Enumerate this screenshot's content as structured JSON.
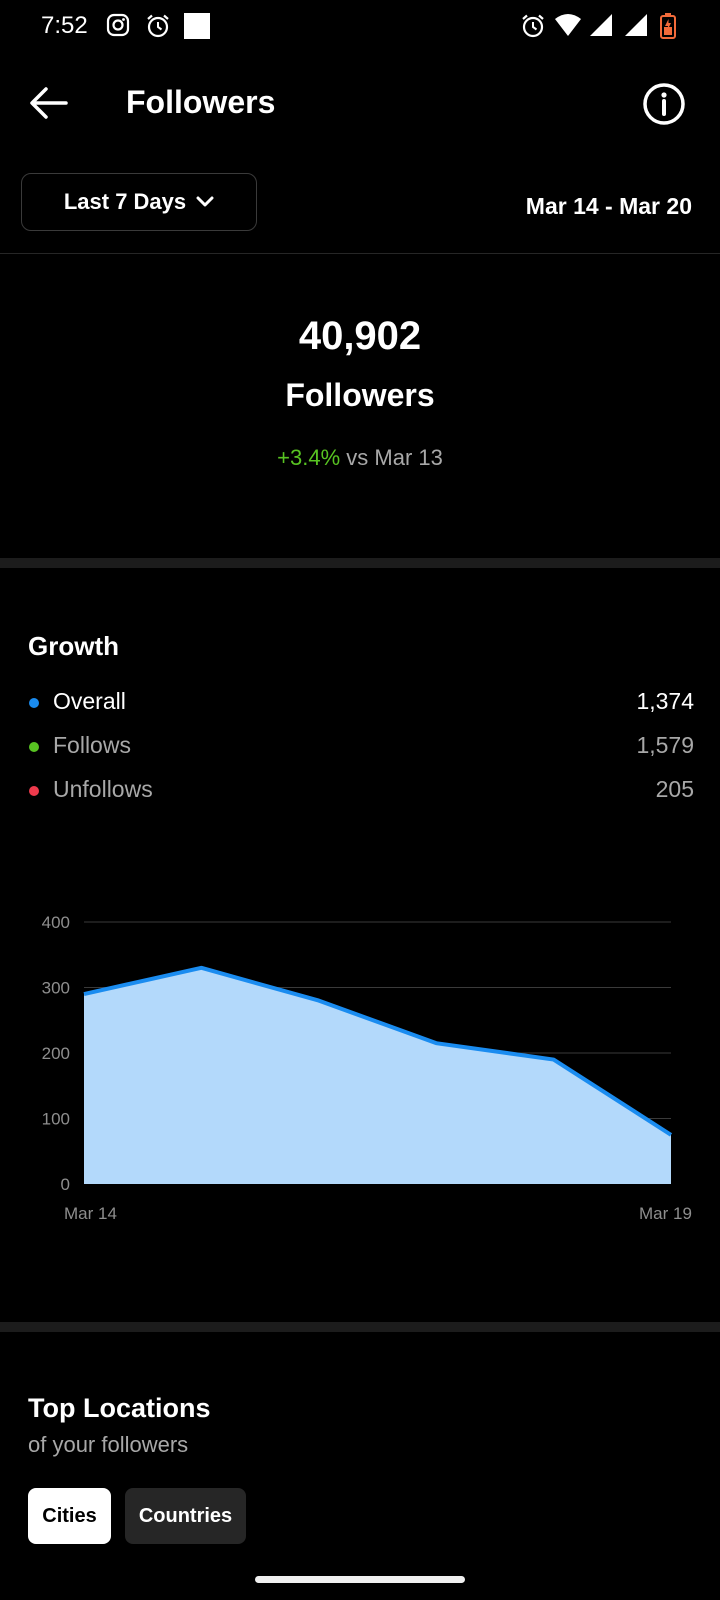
{
  "status_bar": {
    "time": "7:52",
    "left_icons": [
      "instagram-icon",
      "alarm-icon",
      "square-notification-icon"
    ],
    "right_icons": [
      "alarm-icon",
      "wifi-icon",
      "signal-icon",
      "signal-icon",
      "battery-icon"
    ]
  },
  "header": {
    "title": "Followers",
    "back_icon": "arrow-left-icon",
    "info_icon": "info-icon"
  },
  "filter": {
    "range_label": "Last 7 Days",
    "date_range": "Mar 14 - Mar 20"
  },
  "summary": {
    "total": "40,902",
    "label": "Followers",
    "change": "+3.4%",
    "comparison": "vs Mar 13"
  },
  "growth": {
    "title": "Growth",
    "legend": [
      {
        "name": "Overall",
        "value": "1,374",
        "color": "#1a8cf0",
        "text_color": "#ffffff"
      },
      {
        "name": "Follows",
        "value": "1,579",
        "color": "#58c322",
        "text_color": "#a8a8a8"
      },
      {
        "name": "Unfollows",
        "value": "205",
        "color": "#ee3a4c",
        "text_color": "#a8a8a8"
      }
    ]
  },
  "chart_data": {
    "type": "area",
    "y_ticks": [
      "400",
      "300",
      "200",
      "100",
      "0"
    ],
    "x_labels": [
      "Mar 14",
      "Mar 19"
    ],
    "ylim": [
      0,
      400
    ],
    "values": [
      290,
      330,
      280,
      215,
      190,
      75
    ],
    "line_color": "#1a8cf0",
    "fill_color": "#b3d9fb",
    "grid": true
  },
  "top_locations": {
    "title": "Top Locations",
    "subtitle": "of your followers",
    "tabs": [
      "Cities",
      "Countries"
    ]
  }
}
